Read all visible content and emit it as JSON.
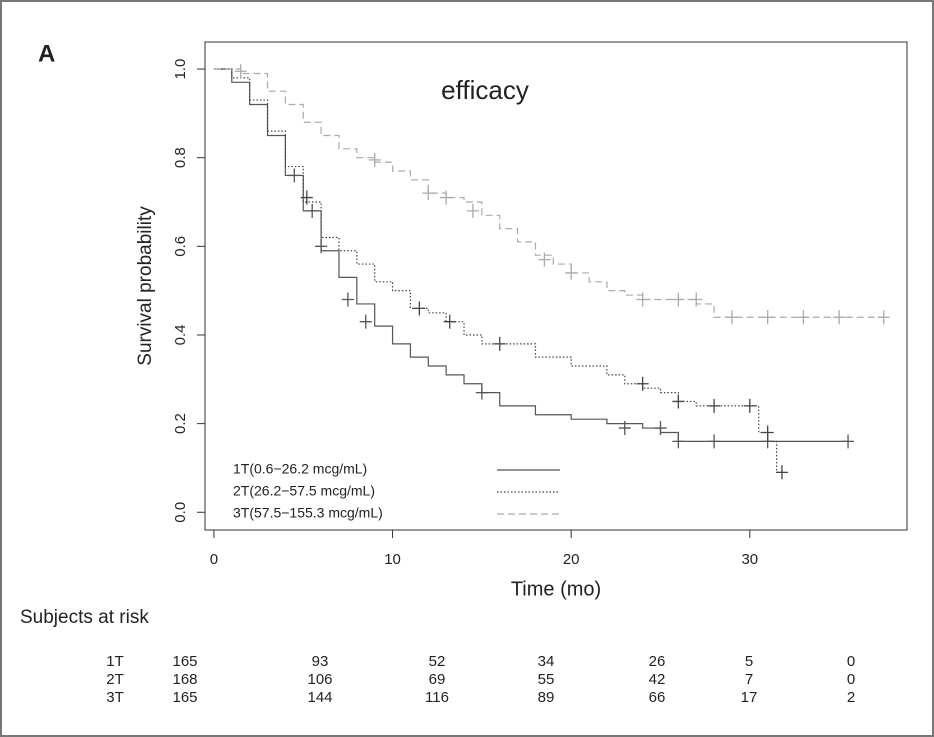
{
  "chart_data": {
    "type": "step",
    "panel_label": "A",
    "annotation": "efficacy",
    "x_label": "Time (mo)",
    "y_label": "Survival probability",
    "xlim": [
      -0.5,
      38.8
    ],
    "ylim": [
      -0.04,
      1.061
    ],
    "xticks": [
      0,
      10,
      20,
      30
    ],
    "yticks": [
      {
        "value": 0,
        "label": "0.0"
      },
      0.2,
      0.4,
      0.6,
      0.8,
      {
        "value": 1,
        "label": "1.0"
      }
    ],
    "legend": "lower left",
    "series": [
      {
        "name": "1T(0.6−26.2 mcg/mL)",
        "color": "#555555",
        "dash": "solid",
        "x": [
          0,
          1,
          2,
          3,
          4,
          5,
          6,
          7,
          8,
          9,
          10,
          11,
          12,
          13,
          14,
          15,
          16,
          18,
          20,
          22,
          24,
          25,
          26,
          30,
          35.5
        ],
        "values": [
          1.0,
          0.97,
          0.92,
          0.85,
          0.76,
          0.68,
          0.59,
          0.53,
          0.47,
          0.42,
          0.38,
          0.35,
          0.33,
          0.31,
          0.29,
          0.27,
          0.24,
          0.22,
          0.21,
          0.2,
          0.19,
          0.18,
          0.16,
          0.16,
          0.16
        ],
        "censor_x": [
          4.5,
          5.5,
          6,
          7.5,
          8.5,
          15,
          23,
          25,
          26,
          28,
          31,
          35.5
        ],
        "censor_values": [
          0.76,
          0.68,
          0.6,
          0.48,
          0.43,
          0.27,
          0.19,
          0.19,
          0.16,
          0.16,
          0.16,
          0.16
        ]
      },
      {
        "name": "2T(26.2−57.5 mcg/mL)",
        "color": "#444444",
        "dash": "dotted",
        "x": [
          0,
          1,
          2,
          3,
          4,
          5,
          6,
          7,
          8,
          9,
          10,
          11,
          12,
          13,
          14,
          15,
          16,
          18,
          20,
          22,
          23,
          24,
          25,
          26,
          27,
          30.5,
          31,
          31.5,
          31.8
        ],
        "values": [
          1.0,
          0.98,
          0.93,
          0.86,
          0.78,
          0.7,
          0.62,
          0.59,
          0.56,
          0.52,
          0.5,
          0.46,
          0.45,
          0.43,
          0.4,
          0.38,
          0.38,
          0.35,
          0.33,
          0.31,
          0.29,
          0.28,
          0.27,
          0.25,
          0.24,
          0.18,
          0.16,
          0.09,
          0.09
        ],
        "censor_x": [
          5.2,
          11.5,
          13.2,
          16,
          24,
          26,
          28,
          30,
          31,
          31.8
        ],
        "censor_values": [
          0.71,
          0.46,
          0.43,
          0.38,
          0.29,
          0.25,
          0.24,
          0.24,
          0.18,
          0.09
        ]
      },
      {
        "name": "3T(57.5−155.3 mcg/mL)",
        "color": "#aaaaaa",
        "dash": "dashed",
        "x": [
          0,
          1.5,
          3,
          4,
          5,
          6,
          7,
          8,
          9,
          10,
          11,
          12,
          13,
          14,
          15,
          16,
          17,
          18,
          19,
          20,
          21,
          22,
          23,
          24,
          25,
          27,
          28,
          37.5
        ],
        "values": [
          1.0,
          0.99,
          0.95,
          0.92,
          0.88,
          0.85,
          0.82,
          0.8,
          0.79,
          0.77,
          0.75,
          0.72,
          0.71,
          0.7,
          0.67,
          0.64,
          0.61,
          0.58,
          0.56,
          0.54,
          0.52,
          0.5,
          0.49,
          0.48,
          0.48,
          0.47,
          0.44,
          0.44
        ],
        "censor_x": [
          1.5,
          9,
          12,
          13,
          14.5,
          18.5,
          20,
          24,
          26,
          27,
          29,
          31,
          33,
          35,
          37.5
        ],
        "censor_values": [
          0.995,
          0.795,
          0.72,
          0.71,
          0.68,
          0.57,
          0.54,
          0.48,
          0.48,
          0.48,
          0.44,
          0.44,
          0.44,
          0.44,
          0.44
        ]
      }
    ]
  },
  "risk_table": {
    "title": "Subjects at risk",
    "rows": [
      {
        "label": "1T",
        "counts": [
          165,
          93,
          52,
          34,
          26,
          5,
          0
        ]
      },
      {
        "label": "2T",
        "counts": [
          168,
          106,
          69,
          55,
          42,
          7,
          0
        ]
      },
      {
        "label": "3T",
        "counts": [
          165,
          144,
          116,
          89,
          66,
          17,
          2
        ]
      }
    ]
  }
}
